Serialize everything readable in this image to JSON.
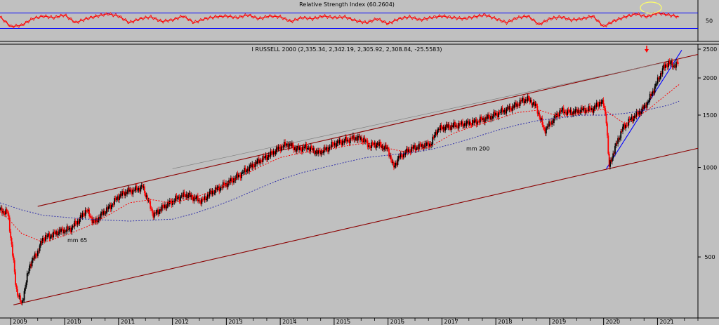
{
  "chart_data": [
    {
      "type": "line",
      "title": "Relative Strength Index (60.2604)",
      "ylim": [
        0,
        100
      ],
      "yticks": [
        50
      ],
      "levels": [
        30,
        70
      ],
      "colors": {
        "series": "#ff0000",
        "levels": "#0000ff"
      },
      "series": [
        {
          "x": [
            2008.8,
            2009.0,
            2009.2,
            2009.4,
            2009.6,
            2009.8,
            2010.0,
            2010.2,
            2010.4,
            2010.6,
            2010.8,
            2011.0,
            2011.2,
            2011.4,
            2011.6,
            2011.8,
            2012.0,
            2012.2,
            2012.4,
            2012.6,
            2012.8,
            2013.0,
            2013.2,
            2013.4,
            2013.6,
            2013.8,
            2014.0,
            2014.2,
            2014.4,
            2014.6,
            2014.8,
            2015.0,
            2015.2,
            2015.4,
            2015.6,
            2015.8,
            2016.0,
            2016.2,
            2016.4,
            2016.6,
            2016.8,
            2017.0,
            2017.2,
            2017.4,
            2017.6,
            2017.8,
            2018.0,
            2018.2,
            2018.4,
            2018.6,
            2018.8,
            2019.0,
            2019.2,
            2019.4,
            2019.6,
            2019.8,
            2020.0,
            2020.2,
            2020.4,
            2020.6,
            2020.8,
            2021.0,
            2021.2,
            2021.4
          ],
          "values": [
            60,
            35,
            38,
            55,
            62,
            58,
            65,
            45,
            55,
            62,
            68,
            62,
            45,
            55,
            60,
            48,
            52,
            62,
            45,
            55,
            60,
            62,
            58,
            65,
            55,
            62,
            60,
            48,
            58,
            55,
            62,
            58,
            60,
            50,
            45,
            55,
            42,
            55,
            60,
            52,
            58,
            62,
            58,
            55,
            60,
            65,
            55,
            45,
            58,
            62,
            40,
            55,
            60,
            52,
            55,
            62,
            35,
            50,
            60,
            68,
            60,
            70,
            65,
            60
          ]
        }
      ]
    },
    {
      "type": "line",
      "title": "I RUSSELL 2000 (2,335.34, 2,342.19, 2,305.92, 2,308.84, -25.5583)",
      "scale": "log",
      "ylim": [
        340,
        2500
      ],
      "yticks": [
        500,
        1000,
        1500,
        2000,
        2500
      ],
      "xlim": [
        2008.8,
        2021.75
      ],
      "xticks": [
        "2009",
        "2010",
        "2011",
        "2012",
        "2013",
        "2014",
        "2015",
        "2016",
        "2017",
        "2018",
        "2019",
        "2020",
        "2021"
      ],
      "xtick_values": [
        2009,
        2010,
        2011,
        2012,
        2013,
        2014,
        2015,
        2016,
        2017,
        2018,
        2019,
        2020,
        2021
      ],
      "colors": {
        "up": "#000000",
        "down": "#ff0000",
        "mm65": "#ff0000",
        "mm200": "#3333aa",
        "channel": "#8b0000",
        "grey_line": "#808080",
        "trend": "#0000ff",
        "highlight": "#ffff66"
      },
      "annotations": [
        {
          "text": "mm 65",
          "x": 2010.05,
          "y": 560
        },
        {
          "text": "mm 200",
          "x": 2017.45,
          "y": 1140
        }
      ],
      "series": [
        {
          "name": "price",
          "x": [
            2008.8,
            2008.95,
            2009.05,
            2009.1,
            2009.2,
            2009.35,
            2009.5,
            2009.6,
            2009.75,
            2009.9,
            2010.1,
            2010.25,
            2010.4,
            2010.55,
            2010.7,
            2010.85,
            2011.0,
            2011.15,
            2011.3,
            2011.45,
            2011.55,
            2011.65,
            2011.8,
            2011.95,
            2012.1,
            2012.25,
            2012.4,
            2012.55,
            2012.7,
            2012.85,
            2013.0,
            2013.2,
            2013.4,
            2013.6,
            2013.8,
            2014.0,
            2014.15,
            2014.3,
            2014.5,
            2014.7,
            2014.85,
            2015.0,
            2015.2,
            2015.4,
            2015.55,
            2015.65,
            2015.8,
            2016.0,
            2016.1,
            2016.2,
            2016.4,
            2016.6,
            2016.8,
            2016.9,
            2017.0,
            2017.3,
            2017.6,
            2017.9,
            2018.1,
            2018.3,
            2018.5,
            2018.6,
            2018.75,
            2018.9,
            2019.0,
            2019.2,
            2019.4,
            2019.6,
            2019.8,
            2019.95,
            2020.0,
            2020.05,
            2020.1,
            2020.2,
            2020.35,
            2020.5,
            2020.6,
            2020.75,
            2020.85,
            2021.0,
            2021.1,
            2021.2,
            2021.3,
            2021.4
          ],
          "values": [
            720,
            700,
            480,
            390,
            345,
            470,
            520,
            580,
            590,
            610,
            620,
            660,
            720,
            650,
            700,
            740,
            800,
            830,
            840,
            860,
            770,
            690,
            730,
            760,
            790,
            810,
            790,
            770,
            820,
            850,
            880,
            930,
            990,
            1050,
            1100,
            1170,
            1200,
            1150,
            1170,
            1120,
            1150,
            1200,
            1230,
            1260,
            1240,
            1180,
            1200,
            1150,
            1000,
            1080,
            1150,
            1180,
            1200,
            1330,
            1360,
            1390,
            1420,
            1480,
            1540,
            1590,
            1680,
            1700,
            1600,
            1330,
            1400,
            1550,
            1530,
            1560,
            1570,
            1670,
            1620,
            1450,
            1000,
            1150,
            1350,
            1450,
            1500,
            1590,
            1700,
            1950,
            2150,
            2250,
            2200,
            2250
          ]
        },
        {
          "name": "mm 65",
          "x": [
            2008.8,
            2009.2,
            2009.6,
            2010.0,
            2010.4,
            2010.8,
            2011.2,
            2011.6,
            2012.0,
            2012.4,
            2012.8,
            2013.2,
            2013.6,
            2014.0,
            2014.4,
            2014.8,
            2015.2,
            2015.6,
            2016.0,
            2016.4,
            2016.8,
            2017.2,
            2017.6,
            2018.0,
            2018.4,
            2018.8,
            2019.2,
            2019.6,
            2020.0,
            2020.4,
            2020.8,
            2021.2,
            2021.4
          ],
          "values": [
            720,
            600,
            560,
            590,
            630,
            690,
            760,
            780,
            760,
            790,
            840,
            920,
            1000,
            1080,
            1120,
            1140,
            1180,
            1210,
            1160,
            1120,
            1180,
            1300,
            1380,
            1450,
            1530,
            1560,
            1480,
            1530,
            1570,
            1400,
            1550,
            1780,
            1900
          ]
        },
        {
          "name": "mm 200",
          "x": [
            2008.8,
            2009.2,
            2009.6,
            2010.0,
            2010.4,
            2010.8,
            2011.2,
            2011.6,
            2012.0,
            2012.4,
            2012.8,
            2013.2,
            2013.6,
            2014.0,
            2014.4,
            2014.8,
            2015.2,
            2015.6,
            2016.0,
            2016.4,
            2016.8,
            2017.2,
            2017.6,
            2018.0,
            2018.4,
            2018.8,
            2019.2,
            2019.6,
            2020.0,
            2020.4,
            2020.8,
            2021.2,
            2021.4
          ],
          "values": [
            760,
            720,
            690,
            680,
            670,
            665,
            660,
            665,
            670,
            700,
            740,
            790,
            850,
            910,
            960,
            1000,
            1040,
            1080,
            1100,
            1120,
            1150,
            1200,
            1260,
            1330,
            1390,
            1440,
            1470,
            1500,
            1500,
            1520,
            1560,
            1620,
            1670
          ]
        }
      ],
      "lines": [
        {
          "name": "channel-upper",
          "x": [
            2009.5,
            2021.75
          ],
          "values": [
            740,
            2400
          ]
        },
        {
          "name": "channel-lower",
          "x": [
            2009.05,
            2021.75
          ],
          "values": [
            345,
            1160
          ]
        },
        {
          "name": "grey-line",
          "x": [
            2012.0,
            2021.35
          ],
          "values": [
            990,
            2300
          ]
        },
        {
          "name": "trend-line",
          "x": [
            2020.05,
            2021.45
          ],
          "values": [
            990,
            2480
          ]
        }
      ]
    }
  ]
}
